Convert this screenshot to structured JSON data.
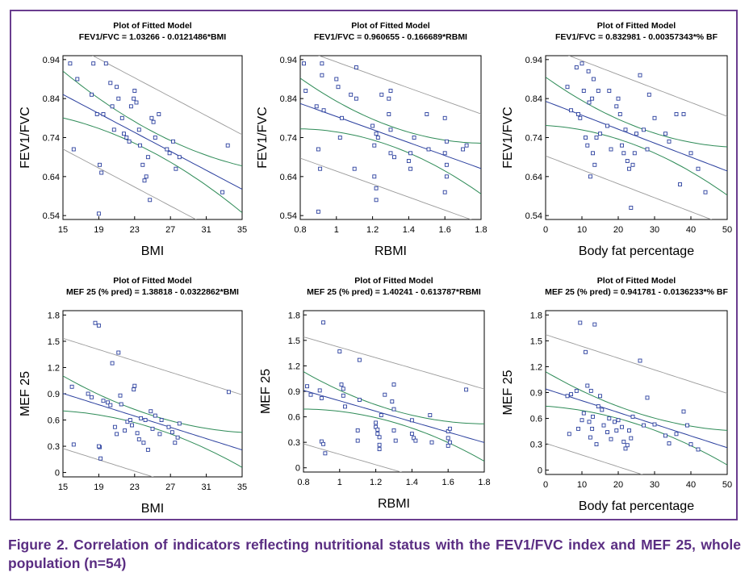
{
  "caption": "Figure 2. Correlation of indicators reflecting nutritional status with the FEV1/FVC index and MEF 25, whole population (n=54)",
  "colors": {
    "frame": "#6a3d8f",
    "caption": "#5a2d82",
    "points": "#2a3f9e",
    "fit_line": "#2a3f9e",
    "confidence": "#2e8b57",
    "prediction": "#9a9a9a"
  },
  "chart_data": [
    {
      "type": "scatter",
      "title": "Plot of Fitted Model",
      "subtitle": "FEV1/FVC = 1.03266 - 0.0121486*BMI",
      "xlabel": "BMI",
      "ylabel": "FEV1/FVC",
      "xlim": [
        15,
        35
      ],
      "ylim": [
        0.53,
        0.95
      ],
      "xticks": [
        "15",
        "19",
        "23",
        "27",
        "31",
        "35"
      ],
      "xtick_values": [
        15,
        19,
        23,
        27,
        31,
        35
      ],
      "yticks": [
        "0.54",
        "0.64",
        "0.74",
        "0.84",
        "0.94"
      ],
      "ytick_values": [
        0.54,
        0.64,
        0.74,
        0.84,
        0.94
      ],
      "fit": {
        "intercept": 1.03266,
        "slope": -0.0121486
      },
      "ci_half": [
        0.0265,
        0.06
      ],
      "pi_half": 0.14,
      "points": [
        [
          15.8,
          0.93
        ],
        [
          16.6,
          0.89
        ],
        [
          16.2,
          0.71
        ],
        [
          18.2,
          0.85
        ],
        [
          18.4,
          0.93
        ],
        [
          18.8,
          0.8
        ],
        [
          19.1,
          0.67
        ],
        [
          19.3,
          0.65
        ],
        [
          19.5,
          0.8
        ],
        [
          19.8,
          0.93
        ],
        [
          20.3,
          0.88
        ],
        [
          20.5,
          0.82
        ],
        [
          20.7,
          0.76
        ],
        [
          21.0,
          0.87
        ],
        [
          21.2,
          0.84
        ],
        [
          21.6,
          0.79
        ],
        [
          21.8,
          0.75
        ],
        [
          22.1,
          0.74
        ],
        [
          22.4,
          0.73
        ],
        [
          22.6,
          0.82
        ],
        [
          22.9,
          0.84
        ],
        [
          23.0,
          0.86
        ],
        [
          23.2,
          0.83
        ],
        [
          23.5,
          0.76
        ],
        [
          23.6,
          0.72
        ],
        [
          23.9,
          0.67
        ],
        [
          24.1,
          0.63
        ],
        [
          24.3,
          0.64
        ],
        [
          24.5,
          0.69
        ],
        [
          24.7,
          0.58
        ],
        [
          24.9,
          0.79
        ],
        [
          25.1,
          0.78
        ],
        [
          25.3,
          0.74
        ],
        [
          25.7,
          0.8
        ],
        [
          26.6,
          0.71
        ],
        [
          26.9,
          0.7
        ],
        [
          27.3,
          0.73
        ],
        [
          27.6,
          0.66
        ],
        [
          28.0,
          0.69
        ],
        [
          32.8,
          0.6
        ],
        [
          33.4,
          0.72
        ],
        [
          19.0,
          0.545
        ]
      ]
    },
    {
      "type": "scatter",
      "title": "Plot of Fitted Model",
      "subtitle": "FEV1/FVC = 0.960655 - 0.166689*RBMI",
      "xlabel": "RBMI",
      "ylabel": "FEV1/FVC",
      "xlim": [
        0.8,
        1.8
      ],
      "ylim": [
        0.53,
        0.95
      ],
      "xticks": [
        "0.8",
        "1",
        "1.2",
        "1.4",
        "1.6",
        "1.8"
      ],
      "xtick_values": [
        0.8,
        1.0,
        1.2,
        1.4,
        1.6,
        1.8
      ],
      "yticks": [
        "0.54",
        "0.64",
        "0.74",
        "0.84",
        "0.94"
      ],
      "ytick_values": [
        0.54,
        0.64,
        0.74,
        0.84,
        0.94
      ],
      "fit": {
        "intercept": 0.960655,
        "slope": -0.166689
      },
      "ci_half": [
        0.025,
        0.065
      ],
      "pi_half": 0.14,
      "points": [
        [
          0.82,
          0.93
        ],
        [
          0.83,
          0.86
        ],
        [
          0.89,
          0.82
        ],
        [
          0.9,
          0.71
        ],
        [
          0.91,
          0.66
        ],
        [
          0.92,
          0.93
        ],
        [
          0.92,
          0.9
        ],
        [
          0.93,
          0.81
        ],
        [
          1.0,
          0.89
        ],
        [
          1.01,
          0.87
        ],
        [
          1.02,
          0.74
        ],
        [
          1.03,
          0.79
        ],
        [
          1.08,
          0.85
        ],
        [
          1.1,
          0.66
        ],
        [
          1.11,
          0.92
        ],
        [
          1.11,
          0.84
        ],
        [
          1.2,
          0.77
        ],
        [
          1.21,
          0.72
        ],
        [
          1.21,
          0.64
        ],
        [
          1.22,
          0.61
        ],
        [
          1.22,
          0.75
        ],
        [
          1.23,
          0.74
        ],
        [
          1.22,
          0.58
        ],
        [
          1.25,
          0.85
        ],
        [
          1.29,
          0.8
        ],
        [
          1.29,
          0.84
        ],
        [
          1.3,
          0.86
        ],
        [
          1.3,
          0.76
        ],
        [
          1.3,
          0.7
        ],
        [
          1.32,
          0.69
        ],
        [
          1.4,
          0.68
        ],
        [
          1.41,
          0.7
        ],
        [
          1.41,
          0.66
        ],
        [
          1.43,
          0.74
        ],
        [
          1.5,
          0.8
        ],
        [
          1.51,
          0.71
        ],
        [
          1.6,
          0.6
        ],
        [
          1.61,
          0.73
        ],
        [
          1.6,
          0.7
        ],
        [
          1.61,
          0.67
        ],
        [
          1.61,
          0.64
        ],
        [
          1.7,
          0.71
        ],
        [
          1.72,
          0.72
        ],
        [
          1.6,
          0.79
        ],
        [
          0.9,
          0.55
        ]
      ]
    },
    {
      "type": "scatter",
      "title": "Plot of Fitted Model",
      "subtitle": "FEV1/FVC = 0.832981 - 0.00357343*% BF",
      "xlabel": "Body fat percentage",
      "ylabel": "FEV1/FVC",
      "xlim": [
        0,
        50
      ],
      "ylim": [
        0.53,
        0.95
      ],
      "xticks": [
        "0",
        "10",
        "20",
        "30",
        "40",
        "50"
      ],
      "xtick_values": [
        0,
        10,
        20,
        30,
        40,
        50
      ],
      "yticks": [
        "0.54",
        "0.64",
        "0.74",
        "0.84",
        "0.94"
      ],
      "ytick_values": [
        0.54,
        0.64,
        0.74,
        0.84,
        0.94
      ],
      "fit": {
        "intercept": 0.832981,
        "slope": -0.00357343
      },
      "ci_half": [
        0.024,
        0.062
      ],
      "pi_half": 0.14,
      "points": [
        [
          6.0,
          0.87
        ],
        [
          7.0,
          0.81
        ],
        [
          8.5,
          0.92
        ],
        [
          9.0,
          0.8
        ],
        [
          9.5,
          0.79
        ],
        [
          10.0,
          0.93
        ],
        [
          10.5,
          0.86
        ],
        [
          11.0,
          0.74
        ],
        [
          11.5,
          0.72
        ],
        [
          11.8,
          0.91
        ],
        [
          12.0,
          0.83
        ],
        [
          12.3,
          0.64
        ],
        [
          12.8,
          0.84
        ],
        [
          13.0,
          0.7
        ],
        [
          13.2,
          0.89
        ],
        [
          13.5,
          0.67
        ],
        [
          14.0,
          0.74
        ],
        [
          14.5,
          0.86
        ],
        [
          15.0,
          0.75
        ],
        [
          17.0,
          0.77
        ],
        [
          17.5,
          0.86
        ],
        [
          18.0,
          0.71
        ],
        [
          19.5,
          0.82
        ],
        [
          20.0,
          0.84
        ],
        [
          20.5,
          0.8
        ],
        [
          21.0,
          0.72
        ],
        [
          21.5,
          0.7
        ],
        [
          22.0,
          0.76
        ],
        [
          22.5,
          0.68
        ],
        [
          23.0,
          0.66
        ],
        [
          23.5,
          0.56
        ],
        [
          24.0,
          0.67
        ],
        [
          24.5,
          0.7
        ],
        [
          25.0,
          0.75
        ],
        [
          26.0,
          0.9
        ],
        [
          27.0,
          0.76
        ],
        [
          28.0,
          0.71
        ],
        [
          28.5,
          0.85
        ],
        [
          30.0,
          0.79
        ],
        [
          33.0,
          0.75
        ],
        [
          34.0,
          0.73
        ],
        [
          36.0,
          0.8
        ],
        [
          37.0,
          0.62
        ],
        [
          38.0,
          0.8
        ],
        [
          40.0,
          0.7
        ],
        [
          42.0,
          0.66
        ],
        [
          44.0,
          0.6
        ]
      ]
    },
    {
      "type": "scatter",
      "title": "Plot of Fitted Model",
      "subtitle": "MEF 25 (% pred) = 1.38818 - 0.0322862*BMI",
      "xlabel": "BMI",
      "ylabel": "MEF 25",
      "xlim": [
        15,
        35
      ],
      "ylim": [
        -0.05,
        1.85
      ],
      "xticks": [
        "15",
        "19",
        "23",
        "27",
        "31",
        "35"
      ],
      "xtick_values": [
        15,
        19,
        23,
        27,
        31,
        35
      ],
      "yticks": [
        "0",
        "0.3",
        "0.6",
        "0.9",
        "1.2",
        "1.5",
        "1.8"
      ],
      "ytick_values": [
        0,
        0.3,
        0.6,
        0.9,
        1.2,
        1.5,
        1.8
      ],
      "fit": {
        "intercept": 1.38818,
        "slope": -0.0322862
      },
      "ci_half": [
        0.07,
        0.2
      ],
      "pi_half": 0.63,
      "points": [
        [
          16.0,
          0.98
        ],
        [
          16.2,
          0.32
        ],
        [
          17.8,
          0.9
        ],
        [
          18.2,
          0.86
        ],
        [
          18.6,
          1.71
        ],
        [
          19.0,
          1.68
        ],
        [
          19.1,
          0.29
        ],
        [
          19.2,
          0.16
        ],
        [
          19.5,
          0.82
        ],
        [
          20.0,
          0.8
        ],
        [
          20.3,
          0.77
        ],
        [
          20.5,
          1.25
        ],
        [
          20.8,
          0.52
        ],
        [
          21.0,
          0.44
        ],
        [
          21.2,
          1.37
        ],
        [
          21.4,
          0.88
        ],
        [
          21.5,
          0.78
        ],
        [
          21.9,
          0.48
        ],
        [
          22.2,
          0.58
        ],
        [
          22.5,
          0.6
        ],
        [
          22.7,
          0.54
        ],
        [
          22.9,
          0.95
        ],
        [
          23.0,
          0.99
        ],
        [
          23.3,
          0.45
        ],
        [
          23.5,
          0.38
        ],
        [
          23.7,
          0.62
        ],
        [
          24.0,
          0.34
        ],
        [
          24.2,
          0.6
        ],
        [
          24.5,
          0.26
        ],
        [
          24.8,
          0.7
        ],
        [
          25.0,
          0.5
        ],
        [
          25.3,
          0.65
        ],
        [
          25.8,
          0.44
        ],
        [
          26.0,
          0.6
        ],
        [
          26.8,
          0.52
        ],
        [
          27.2,
          0.46
        ],
        [
          27.5,
          0.34
        ],
        [
          27.8,
          0.4
        ],
        [
          28.0,
          0.56
        ],
        [
          33.5,
          0.92
        ],
        [
          19.0,
          0.3
        ]
      ]
    },
    {
      "type": "scatter",
      "title": "Plot of Fitted Model",
      "subtitle": "MEF 25 (% pred) = 1.40241 - 0.613787*RBMI",
      "xlabel": "RBMI",
      "ylabel": "MEF 25",
      "xlim": [
        0.8,
        1.8
      ],
      "ylim": [
        -0.05,
        1.85
      ],
      "xticks": [
        "0.8",
        "1",
        "1.2",
        "1.4",
        "1.6",
        "1.8"
      ],
      "xtick_values": [
        0.8,
        1.0,
        1.2,
        1.4,
        1.6,
        1.8
      ],
      "yticks": [
        "0",
        "0.3",
        "0.6",
        "0.9",
        "1.2",
        "1.5",
        "1.8"
      ],
      "ytick_values": [
        0,
        0.3,
        0.6,
        0.9,
        1.2,
        1.5,
        1.8
      ],
      "fit": {
        "intercept": 1.40241,
        "slope": -0.613787
      },
      "ci_half": [
        0.07,
        0.22
      ],
      "pi_half": 0.63,
      "points": [
        [
          0.82,
          0.96
        ],
        [
          0.84,
          0.86
        ],
        [
          0.89,
          0.91
        ],
        [
          0.9,
          0.82
        ],
        [
          0.9,
          0.31
        ],
        [
          0.91,
          0.28
        ],
        [
          0.91,
          1.71
        ],
        [
          0.92,
          0.17
        ],
        [
          1.0,
          1.37
        ],
        [
          1.01,
          0.98
        ],
        [
          1.02,
          0.93
        ],
        [
          1.02,
          0.85
        ],
        [
          1.03,
          0.72
        ],
        [
          1.1,
          0.44
        ],
        [
          1.1,
          0.32
        ],
        [
          1.11,
          1.27
        ],
        [
          1.11,
          0.8
        ],
        [
          1.2,
          0.53
        ],
        [
          1.2,
          0.48
        ],
        [
          1.21,
          0.45
        ],
        [
          1.21,
          0.4
        ],
        [
          1.22,
          0.36
        ],
        [
          1.22,
          0.27
        ],
        [
          1.22,
          0.22
        ],
        [
          1.23,
          0.62
        ],
        [
          1.25,
          0.86
        ],
        [
          1.29,
          0.78
        ],
        [
          1.3,
          0.98
        ],
        [
          1.3,
          0.69
        ],
        [
          1.3,
          0.44
        ],
        [
          1.31,
          0.32
        ],
        [
          1.4,
          0.56
        ],
        [
          1.4,
          0.4
        ],
        [
          1.41,
          0.35
        ],
        [
          1.42,
          0.32
        ],
        [
          1.5,
          0.62
        ],
        [
          1.51,
          0.3
        ],
        [
          1.6,
          0.43
        ],
        [
          1.61,
          0.46
        ],
        [
          1.6,
          0.35
        ],
        [
          1.61,
          0.3
        ],
        [
          1.7,
          0.92
        ],
        [
          1.6,
          0.26
        ]
      ]
    },
    {
      "type": "scatter",
      "title": "Plot of Fitted Model",
      "subtitle": "MEF 25 (% pred) = 0.941781 - 0.0136233*% BF",
      "xlabel": "Body fat percentage",
      "ylabel": "MEF 25",
      "xlim": [
        0,
        50
      ],
      "ylim": [
        -0.05,
        1.85
      ],
      "xticks": [
        "0",
        "10",
        "20",
        "30",
        "40",
        "50"
      ],
      "xtick_values": [
        0,
        10,
        20,
        30,
        40,
        50
      ],
      "yticks": [
        "0",
        "0.3",
        "0.6",
        "0.9",
        "1.2",
        "1.5",
        "1.8"
      ],
      "ytick_values": [
        0,
        0.3,
        0.6,
        0.9,
        1.2,
        1.5,
        1.8
      ],
      "fit": {
        "intercept": 0.941781,
        "slope": -0.0136233
      },
      "ci_half": [
        0.065,
        0.2
      ],
      "pi_half": 0.63,
      "points": [
        [
          6.0,
          0.86
        ],
        [
          6.5,
          0.42
        ],
        [
          7.0,
          0.88
        ],
        [
          8.5,
          0.92
        ],
        [
          9.0,
          0.48
        ],
        [
          9.5,
          1.71
        ],
        [
          10.0,
          0.58
        ],
        [
          10.5,
          0.66
        ],
        [
          11.0,
          1.37
        ],
        [
          11.5,
          0.98
        ],
        [
          12.0,
          0.56
        ],
        [
          12.3,
          0.38
        ],
        [
          12.5,
          0.92
        ],
        [
          12.8,
          0.48
        ],
        [
          13.0,
          0.62
        ],
        [
          13.5,
          1.69
        ],
        [
          14.0,
          0.3
        ],
        [
          14.5,
          0.74
        ],
        [
          15.0,
          0.86
        ],
        [
          15.5,
          0.7
        ],
        [
          16.0,
          0.52
        ],
        [
          17.0,
          0.44
        ],
        [
          17.5,
          0.6
        ],
        [
          18.0,
          0.36
        ],
        [
          19.0,
          0.56
        ],
        [
          19.5,
          0.46
        ],
        [
          20.0,
          0.58
        ],
        [
          21.0,
          0.5
        ],
        [
          21.5,
          0.33
        ],
        [
          22.0,
          0.25
        ],
        [
          22.5,
          0.29
        ],
        [
          23.0,
          0.46
        ],
        [
          23.5,
          0.37
        ],
        [
          24.0,
          0.62
        ],
        [
          26.0,
          1.27
        ],
        [
          27.0,
          0.52
        ],
        [
          28.0,
          0.84
        ],
        [
          30.0,
          0.53
        ],
        [
          33.0,
          0.4
        ],
        [
          34.0,
          0.31
        ],
        [
          36.0,
          0.42
        ],
        [
          38.0,
          0.68
        ],
        [
          39.0,
          0.52
        ],
        [
          40.0,
          0.3
        ],
        [
          42.0,
          0.24
        ]
      ]
    }
  ]
}
